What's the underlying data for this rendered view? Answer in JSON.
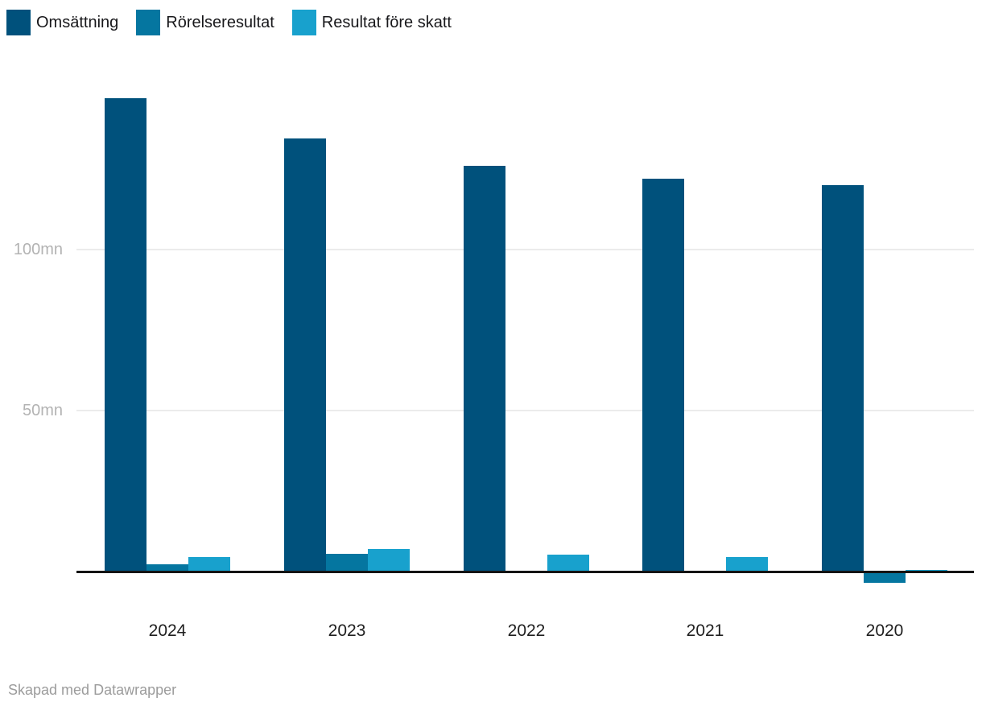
{
  "footer": {
    "credit": "Skapad med Datawrapper"
  },
  "colors": {
    "background": "#ffffff",
    "grid": "#ebebeb",
    "axis_line": "#141414",
    "tick_label": "#b3b3b3",
    "category_label": "#1f1f1f",
    "legend_label": "#18181b",
    "credit": "#9c9c9c"
  },
  "chart_data": {
    "type": "bar",
    "title": "",
    "xlabel": "",
    "ylabel": "",
    "unit": "mn",
    "categories": [
      "2024",
      "2023",
      "2022",
      "2021",
      "2020"
    ],
    "series": [
      {
        "name": "Omsättning",
        "color": "#00517C",
        "values": [
          147,
          134.5,
          126,
          122,
          120
        ]
      },
      {
        "name": "Rörelseresultat",
        "color": "#0576A0",
        "values": [
          2.3,
          5.5,
          0,
          0,
          -3
        ]
      },
      {
        "name": "Resultat före skatt",
        "color": "#18A1CD",
        "values": [
          4.5,
          7,
          5.3,
          4.5,
          0.5
        ]
      }
    ],
    "y_ticks": [
      {
        "value": 100,
        "label": "100mn"
      },
      {
        "value": 50,
        "label": "50mn"
      }
    ],
    "ylim": [
      -5,
      150
    ],
    "baseline": 0,
    "grid": true,
    "legend_position": "top-left"
  }
}
